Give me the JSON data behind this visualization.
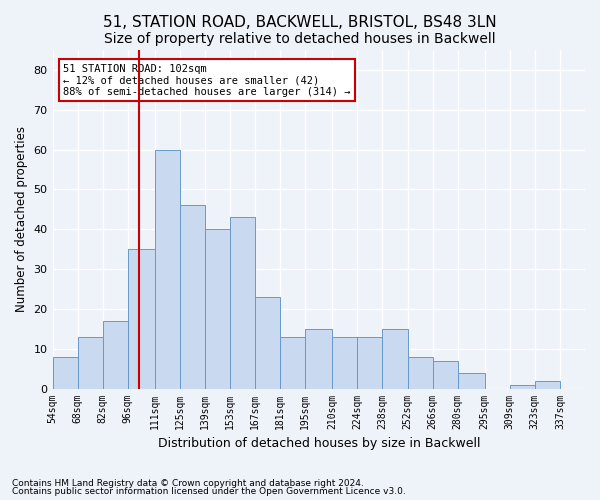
{
  "title_line1": "51, STATION ROAD, BACKWELL, BRISTOL, BS48 3LN",
  "title_line2": "Size of property relative to detached houses in Backwell",
  "xlabel": "Distribution of detached houses by size in Backwell",
  "ylabel": "Number of detached properties",
  "footnote1": "Contains HM Land Registry data © Crown copyright and database right 2024.",
  "footnote2": "Contains public sector information licensed under the Open Government Licence v3.0.",
  "annotation_line1": "51 STATION ROAD: 102sqm",
  "annotation_line2": "← 12% of detached houses are smaller (42)",
  "annotation_line3": "88% of semi-detached houses are larger (314) →",
  "property_value": 102,
  "bar_edges": [
    54,
    68,
    82,
    96,
    111,
    125,
    139,
    153,
    167,
    181,
    195,
    210,
    224,
    238,
    252,
    266,
    280,
    295,
    309,
    323,
    337,
    351
  ],
  "bar_heights": [
    8,
    13,
    17,
    35,
    60,
    46,
    40,
    43,
    23,
    13,
    15,
    13,
    13,
    15,
    8,
    7,
    4,
    0,
    1,
    2,
    0
  ],
  "xtick_labels": [
    "54sqm",
    "68sqm",
    "82sqm",
    "96sqm",
    "111sqm",
    "125sqm",
    "139sqm",
    "153sqm",
    "167sqm",
    "181sqm",
    "195sqm",
    "210sqm",
    "224sqm",
    "238sqm",
    "252sqm",
    "266sqm",
    "280sqm",
    "295sqm",
    "309sqm",
    "323sqm",
    "337sqm"
  ],
  "bar_color": "#c9d9f0",
  "bar_edgecolor": "#6699cc",
  "vline_color": "#cc0000",
  "vline_value": 102,
  "ylim": [
    0,
    85
  ],
  "yticks": [
    0,
    10,
    20,
    30,
    40,
    50,
    60,
    70,
    80
  ],
  "background_color": "#eef2f9",
  "plot_background": "#eef2f9",
  "grid_color": "#ffffff",
  "title_fontsize": 11,
  "subtitle_fontsize": 10,
  "annotation_box_edgecolor": "#cc0000",
  "annotation_box_facecolor": "#ffffff"
}
